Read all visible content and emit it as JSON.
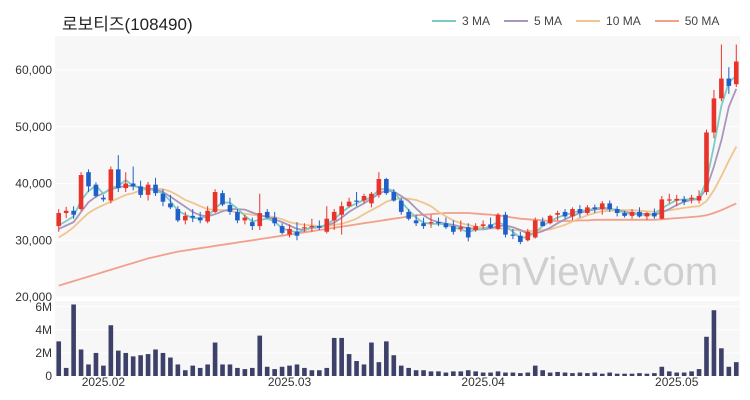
{
  "title": "로보티즈(108490)",
  "watermark": "enViewV.com",
  "legend": [
    {
      "label": "3 MA",
      "color": "#7dcbc4"
    },
    {
      "label": "5 MA",
      "color": "#a896bc"
    },
    {
      "label": "10 MA",
      "color": "#f0c58e"
    },
    {
      "label": "50 MA",
      "color": "#f2a08a"
    }
  ],
  "colors": {
    "up": "#e8332b",
    "down": "#1e5fc9",
    "volume": "#3d4068",
    "plot_bg": "#f7f7f7"
  },
  "chart_data": {
    "type": "candlestick",
    "price_axis": {
      "ticks": [
        20000,
        30000,
        40000,
        50000,
        60000
      ],
      "tick_labels": [
        "20,000",
        "30,000",
        "40,000",
        "50,000",
        "60,000"
      ],
      "ylim": [
        20000,
        66000
      ]
    },
    "volume_axis": {
      "ticks": [
        0,
        2000000,
        4000000,
        6000000
      ],
      "tick_labels": [
        "0",
        "2M",
        "4M",
        "6M"
      ],
      "ylim": [
        0,
        6500000
      ]
    },
    "x_ticks": [
      {
        "label": "2025.02",
        "index": 6
      },
      {
        "label": "2025.03",
        "index": 31
      },
      {
        "label": "2025.04",
        "index": 57
      },
      {
        "label": "2025.05",
        "index": 83
      }
    ],
    "candles": [
      [
        32500,
        35500,
        31500,
        34800,
        3000000
      ],
      [
        34800,
        35900,
        33900,
        35200,
        700000
      ],
      [
        35200,
        36000,
        33800,
        34500,
        6200000
      ],
      [
        35500,
        42000,
        35200,
        41500,
        2300000
      ],
      [
        42000,
        42500,
        38500,
        39500,
        1000000
      ],
      [
        39800,
        40200,
        37500,
        37800,
        2000000
      ],
      [
        37500,
        38000,
        36800,
        37200,
        900000
      ],
      [
        37000,
        43000,
        36500,
        42500,
        4400000
      ],
      [
        42500,
        45000,
        38500,
        39200,
        2200000
      ],
      [
        39200,
        42000,
        38500,
        40000,
        2000000
      ],
      [
        40000,
        43000,
        38800,
        39500,
        1700000
      ],
      [
        39500,
        40500,
        37500,
        38000,
        1800000
      ],
      [
        38000,
        40300,
        37000,
        39800,
        1900000
      ],
      [
        39800,
        41000,
        37800,
        38300,
        2300000
      ],
      [
        38200,
        39000,
        36000,
        36800,
        2000000
      ],
      [
        36500,
        38000,
        35500,
        35800,
        1600000
      ],
      [
        35500,
        36000,
        33200,
        33500,
        1000000
      ],
      [
        33500,
        35000,
        32800,
        34300,
        500000
      ],
      [
        34300,
        35500,
        33200,
        34000,
        900000
      ],
      [
        34000,
        35000,
        33000,
        33500,
        700000
      ],
      [
        33300,
        36000,
        33000,
        35200,
        1000000
      ],
      [
        35000,
        39000,
        34800,
        38500,
        2900000
      ],
      [
        38300,
        38800,
        36000,
        36300,
        1000000
      ],
      [
        36200,
        37500,
        34500,
        35000,
        1000000
      ],
      [
        35000,
        35500,
        33000,
        33500,
        700000
      ],
      [
        33500,
        34500,
        32800,
        34000,
        600000
      ],
      [
        33200,
        34000,
        31800,
        32500,
        700000
      ],
      [
        32500,
        38200,
        31800,
        34800,
        3500000
      ],
      [
        35000,
        35500,
        33800,
        34000,
        800000
      ],
      [
        34000,
        35000,
        32500,
        33000,
        600000
      ],
      [
        32500,
        33000,
        31000,
        31300,
        800000
      ],
      [
        31000,
        32800,
        30500,
        32000,
        900000
      ],
      [
        31500,
        33200,
        30000,
        30800,
        1000000
      ],
      [
        32200,
        33000,
        31500,
        32300,
        700000
      ],
      [
        32300,
        33800,
        31500,
        32500,
        500000
      ],
      [
        32500,
        33500,
        31800,
        32200,
        500000
      ],
      [
        31500,
        36000,
        31200,
        33800,
        700000
      ],
      [
        33500,
        35500,
        31800,
        35000,
        3300000
      ],
      [
        34500,
        36800,
        31000,
        36000,
        3300000
      ],
      [
        36000,
        37500,
        35800,
        36800,
        1900000
      ],
      [
        37000,
        38500,
        36000,
        36800,
        1300000
      ],
      [
        37000,
        38200,
        36500,
        37800,
        1000000
      ],
      [
        36500,
        38500,
        35800,
        38200,
        2900000
      ],
      [
        38000,
        42000,
        37500,
        40800,
        1200000
      ],
      [
        40800,
        41000,
        38000,
        38300,
        3000000
      ],
      [
        38500,
        39000,
        36800,
        37000,
        1800000
      ],
      [
        37000,
        37500,
        34500,
        35000,
        900000
      ],
      [
        35000,
        35500,
        33500,
        33800,
        700000
      ],
      [
        33500,
        34500,
        32500,
        33000,
        500000
      ],
      [
        33000,
        34000,
        32000,
        32500,
        500000
      ],
      [
        33000,
        34500,
        32200,
        33200,
        400000
      ],
      [
        33200,
        34000,
        32500,
        33000,
        400000
      ],
      [
        33000,
        34000,
        32000,
        32300,
        300000
      ],
      [
        32500,
        33500,
        31000,
        31500,
        400000
      ],
      [
        32000,
        33500,
        31500,
        32300,
        400000
      ],
      [
        32300,
        33000,
        29800,
        30500,
        500000
      ],
      [
        31800,
        33000,
        31500,
        32500,
        400000
      ],
      [
        32500,
        33500,
        32000,
        32800,
        300000
      ],
      [
        32800,
        34000,
        32000,
        32200,
        300000
      ],
      [
        32000,
        34800,
        31800,
        34500,
        400000
      ],
      [
        34500,
        35000,
        30500,
        31000,
        300000
      ],
      [
        31000,
        32000,
        30200,
        30800,
        300000
      ],
      [
        30800,
        31500,
        29300,
        29700,
        250000
      ],
      [
        30000,
        32000,
        29800,
        31500,
        300000
      ],
      [
        30500,
        34000,
        30300,
        33500,
        900000
      ],
      [
        33300,
        34000,
        32500,
        32500,
        500000
      ],
      [
        33000,
        34500,
        32800,
        34300,
        300000
      ],
      [
        34500,
        35200,
        33500,
        34800,
        350000
      ],
      [
        35000,
        35500,
        33800,
        34200,
        300000
      ],
      [
        34200,
        35800,
        33500,
        35500,
        250000
      ],
      [
        35500,
        36200,
        34000,
        34800,
        300000
      ],
      [
        34800,
        36200,
        34500,
        35800,
        250000
      ],
      [
        35800,
        36300,
        34800,
        35500,
        300000
      ],
      [
        35500,
        36900,
        34500,
        36500,
        200000
      ],
      [
        36500,
        37000,
        35000,
        35500,
        300000
      ],
      [
        35500,
        36000,
        34200,
        34800,
        200000
      ],
      [
        34800,
        35200,
        34000,
        34300,
        200000
      ],
      [
        34300,
        35500,
        33800,
        35000,
        200000
      ],
      [
        35000,
        35800,
        34000,
        34200,
        250000
      ],
      [
        34200,
        35000,
        33600,
        34800,
        200000
      ],
      [
        34800,
        35600,
        33800,
        34200,
        250000
      ],
      [
        33800,
        37800,
        33700,
        37200,
        800000
      ],
      [
        37000,
        38200,
        36500,
        37200,
        400000
      ],
      [
        37000,
        38000,
        36000,
        37300,
        300000
      ],
      [
        37200,
        37800,
        36200,
        36800,
        300000
      ],
      [
        37200,
        38000,
        36500,
        37500,
        400000
      ],
      [
        37000,
        38800,
        36500,
        37800,
        600000
      ],
      [
        38500,
        49500,
        38000,
        49000,
        3400000
      ],
      [
        49000,
        56500,
        48000,
        55000,
        5700000
      ],
      [
        55000,
        64500,
        54500,
        58500,
        2400000
      ],
      [
        58500,
        60500,
        55800,
        57200,
        800000
      ],
      [
        57500,
        64500,
        57000,
        61500,
        1200000
      ]
    ],
    "ma3": [
      32600,
      33400,
      34200,
      37000,
      38700,
      39600,
      38200,
      39200,
      39600,
      40600,
      39600,
      39200,
      39100,
      38700,
      38300,
      36900,
      35200,
      34500,
      33900,
      33900,
      34200,
      35600,
      36700,
      36600,
      35600,
      34300,
      33300,
      33600,
      33800,
      33300,
      32100,
      31700,
      31400,
      31700,
      32400,
      32300,
      32800,
      33700,
      34900,
      35900,
      36500,
      37100,
      37600,
      38900,
      39100,
      38700,
      36800,
      35300,
      34000,
      33100,
      32900,
      32900,
      32800,
      32300,
      31900,
      31500,
      31800,
      32000,
      32500,
      33200,
      32600,
      31500,
      30400,
      30600,
      31400,
      32500,
      33400,
      34000,
      34500,
      34800,
      35200,
      35300,
      35600,
      35800,
      35600,
      35300,
      34800,
      34600,
      34600,
      34400,
      34700,
      35600,
      36400,
      37100,
      37200,
      37200,
      37400,
      40400,
      46600,
      53700,
      57800,
      59000
    ],
    "ma5": [
      32000,
      32600,
      33200,
      35000,
      36700,
      37700,
      38300,
      39000,
      39300,
      39600,
      39600,
      39300,
      39100,
      39000,
      38500,
      37700,
      36800,
      35900,
      35000,
      34400,
      34200,
      34600,
      35100,
      35500,
      35500,
      35400,
      34900,
      34400,
      34100,
      33700,
      33200,
      32600,
      32000,
      31800,
      32200,
      32300,
      32600,
      33100,
      34000,
      35000,
      35800,
      36500,
      37300,
      38200,
      38800,
      38600,
      37800,
      36900,
      35600,
      34400,
      33600,
      33200,
      32900,
      32700,
      32400,
      32100,
      32000,
      31900,
      32100,
      32500,
      32600,
      32300,
      31800,
      31200,
      31200,
      31600,
      32200,
      33000,
      33700,
      34300,
      34800,
      35200,
      35400,
      35600,
      35500,
      35400,
      35000,
      34800,
      34700,
      34600,
      34500,
      34900,
      35500,
      36200,
      36800,
      37100,
      37300,
      39100,
      43000,
      47600,
      53500,
      56700
    ],
    "ma10": [
      30500,
      31300,
      32300,
      33600,
      34800,
      35600,
      36200,
      36800,
      37400,
      38000,
      38300,
      38800,
      39000,
      39100,
      39000,
      38600,
      37900,
      37100,
      36600,
      36000,
      35500,
      35400,
      35300,
      35200,
      34900,
      34700,
      34500,
      34300,
      34200,
      34100,
      33700,
      33200,
      32900,
      32700,
      32600,
      32500,
      32500,
      32700,
      32900,
      33300,
      33800,
      34600,
      35300,
      36000,
      36800,
      37200,
      37400,
      37300,
      37100,
      36600,
      36000,
      35000,
      34200,
      33500,
      33000,
      32700,
      32400,
      32200,
      32100,
      32100,
      32000,
      31800,
      31700,
      31600,
      31700,
      31800,
      31900,
      32300,
      32700,
      33300,
      33900,
      34400,
      34800,
      35100,
      35200,
      35300,
      35300,
      35300,
      35200,
      35100,
      35000,
      35100,
      35300,
      35500,
      35700,
      35900,
      36000,
      36900,
      38800,
      41300,
      44000,
      46500
    ],
    "ma50": [
      22000,
      22400,
      22800,
      23200,
      23600,
      24000,
      24400,
      24800,
      25200,
      25600,
      26000,
      26400,
      26800,
      27100,
      27400,
      27700,
      28000,
      28200,
      28400,
      28600,
      28800,
      29000,
      29200,
      29400,
      29600,
      29800,
      30000,
      30200,
      30400,
      30600,
      30800,
      31000,
      31200,
      31400,
      31600,
      31800,
      32000,
      32200,
      32400,
      32600,
      32800,
      33000,
      33200,
      33400,
      33600,
      33800,
      34000,
      34200,
      34400,
      34500,
      34600,
      34700,
      34800,
      34800,
      34800,
      34800,
      34700,
      34600,
      34500,
      34400,
      34200,
      34000,
      33800,
      33700,
      33600,
      33500,
      33400,
      33400,
      33400,
      33400,
      33500,
      33500,
      33600,
      33600,
      33600,
      33600,
      33600,
      33600,
      33600,
      33600,
      33600,
      33700,
      33800,
      33900,
      34000,
      34100,
      34200,
      34400,
      34800,
      35300,
      35900,
      36500
    ]
  }
}
